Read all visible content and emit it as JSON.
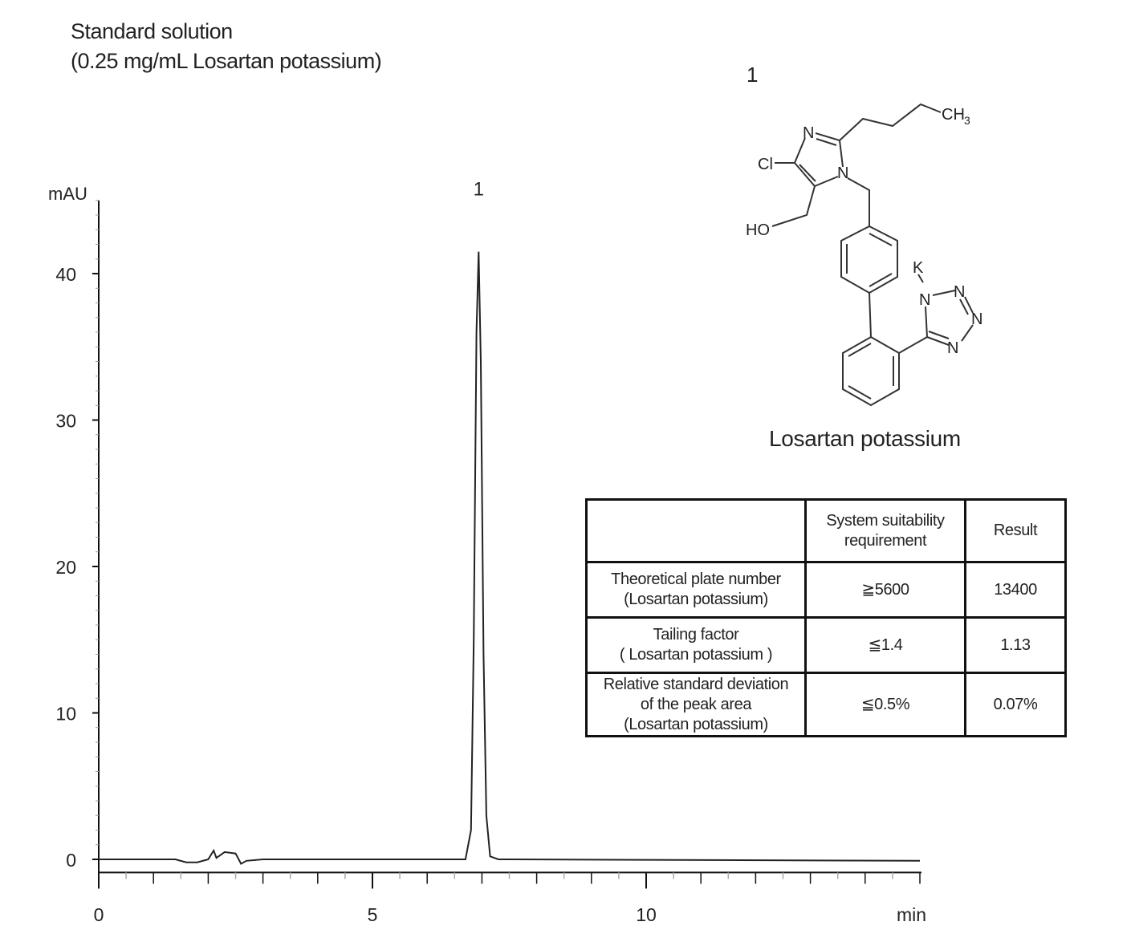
{
  "title": {
    "line1": "Standard solution",
    "line2": "(0.25 mg/mL Losartan potassium)"
  },
  "structure": {
    "peak_label": "1",
    "compound_name": "Losartan potassium",
    "atom_labels": {
      "n": "N",
      "cl": "Cl",
      "ho": "HO",
      "ch3": "CH",
      "ch3_sub": "3",
      "k": "K"
    }
  },
  "table": {
    "headers": [
      "",
      "System  suitability requirement",
      "Result"
    ],
    "rows": [
      {
        "item": [
          "Theoretical plate number",
          "(Losartan potassium)"
        ],
        "requirement": "≧5600",
        "result": "13400"
      },
      {
        "item": [
          "Tailing factor",
          "( Losartan potassium )"
        ],
        "requirement": "≦1.4",
        "result": "1.13"
      },
      {
        "item": [
          "Relative standard deviation",
          "of the peak area",
          "(Losartan potassium)"
        ],
        "requirement": "≦0.5%",
        "result": "0.07%"
      }
    ]
  },
  "chart_data": {
    "type": "line",
    "title": "",
    "xlabel": "min",
    "ylabel": "mAU",
    "xlim": [
      0,
      15
    ],
    "ylim": [
      -0.9,
      45
    ],
    "x_ticks": [
      0,
      5,
      10
    ],
    "y_ticks": [
      0,
      10,
      20,
      30,
      40
    ],
    "grid": false,
    "peaks": [
      {
        "label": "1",
        "retention_time": 6.94,
        "height": 41.5
      }
    ],
    "series": [
      {
        "x": [
          0,
          1.4,
          1.6,
          1.8,
          2.0,
          2.1,
          2.15,
          2.3,
          2.5,
          2.6,
          2.7,
          3.0,
          6.7,
          6.8,
          6.85,
          6.9,
          6.94,
          6.98,
          7.03,
          7.08,
          7.15,
          7.3,
          15.0
        ],
        "y": [
          0,
          0,
          -0.2,
          -0.2,
          0.0,
          0.6,
          0.1,
          0.5,
          0.4,
          -0.3,
          -0.1,
          0,
          0,
          2,
          15,
          36,
          41.5,
          34,
          14,
          3,
          0.2,
          0,
          -0.1
        ]
      }
    ],
    "line_color": "#222222"
  }
}
